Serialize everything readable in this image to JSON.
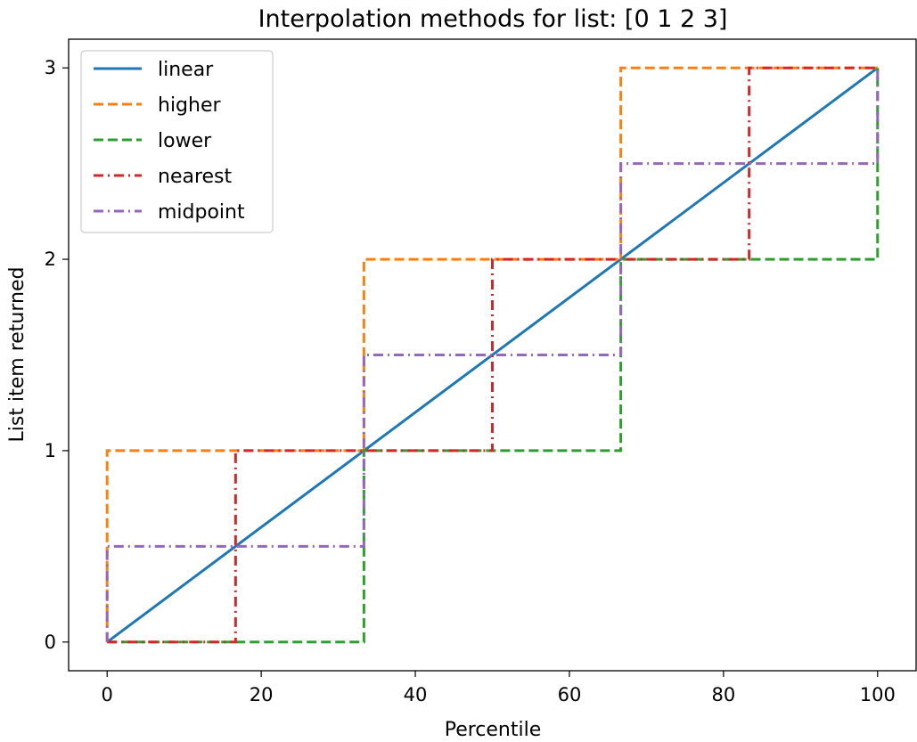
{
  "chart_data": {
    "type": "line",
    "title": "Interpolation methods for list: [0 1 2 3]",
    "xlabel": "Percentile",
    "ylabel": "List item returned",
    "xlim": [
      -5,
      105
    ],
    "ylim": [
      -0.15,
      3.15
    ],
    "xticks": [
      0,
      20,
      40,
      60,
      80,
      100
    ],
    "yticks": [
      0,
      1,
      2,
      3
    ],
    "grid": false,
    "legend_position": "top-left",
    "series": [
      {
        "name": "linear",
        "color": "#1f77b4",
        "style": "solid",
        "x": [
          0,
          100
        ],
        "y": [
          0,
          3
        ]
      },
      {
        "name": "higher",
        "color": "#ff7f0e",
        "style": "dashed",
        "x": [
          0,
          0,
          33.33,
          33.33,
          66.67,
          66.67,
          100
        ],
        "y": [
          0,
          1,
          1,
          2,
          2,
          3,
          3
        ]
      },
      {
        "name": "lower",
        "color": "#2ca02c",
        "style": "dashed",
        "x": [
          0,
          33.33,
          33.33,
          66.67,
          66.67,
          100,
          100
        ],
        "y": [
          0,
          0,
          1,
          1,
          2,
          2,
          3
        ]
      },
      {
        "name": "nearest",
        "color": "#d62728",
        "style": "dashdot",
        "x": [
          0,
          16.67,
          16.67,
          50,
          50,
          83.33,
          83.33,
          100
        ],
        "y": [
          0,
          0,
          1,
          1,
          2,
          2,
          3,
          3
        ]
      },
      {
        "name": "midpoint",
        "color": "#9467bd",
        "style": "dashdot",
        "x": [
          0,
          0,
          33.33,
          33.33,
          66.67,
          66.67,
          100,
          100
        ],
        "y": [
          0,
          0.5,
          0.5,
          1.5,
          1.5,
          2.5,
          2.5,
          3
        ]
      }
    ]
  }
}
